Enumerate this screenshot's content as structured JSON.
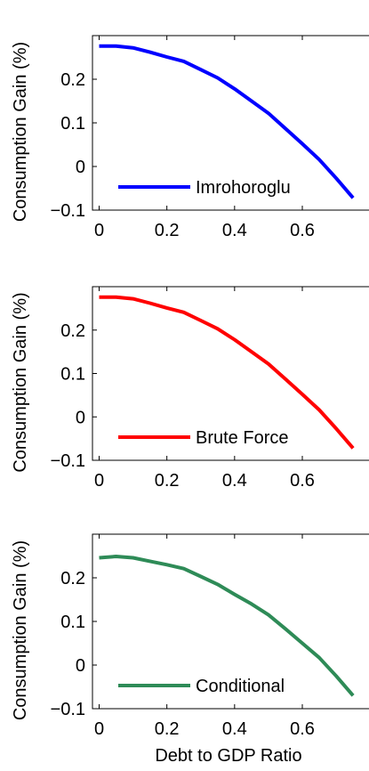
{
  "chart_data": [
    {
      "type": "line",
      "ylabel": "Consumption Gain (%)",
      "xlabel": "",
      "xlim": [
        0,
        0.75
      ],
      "ylim": [
        -0.1,
        0.3
      ],
      "xticks": [
        "0",
        "0.2",
        "0.4",
        "0.6"
      ],
      "yticks": [
        "−0.1",
        "0",
        "0.1",
        "0.2"
      ],
      "legend_position": "bottom",
      "series": [
        {
          "name": "Imrohoroglu",
          "color": "#0000ff",
          "x": [
            0,
            0.05,
            0.1,
            0.15,
            0.2,
            0.25,
            0.3,
            0.35,
            0.4,
            0.45,
            0.5,
            0.55,
            0.6,
            0.65,
            0.7,
            0.75
          ],
          "y": [
            0.276,
            0.276,
            0.272,
            0.262,
            0.251,
            0.241,
            0.222,
            0.203,
            0.178,
            0.15,
            0.122,
            0.087,
            0.052,
            0.016,
            -0.027,
            -0.072
          ]
        }
      ]
    },
    {
      "type": "line",
      "ylabel": "Consumption Gain (%)",
      "xlabel": "",
      "xlim": [
        0,
        0.75
      ],
      "ylim": [
        -0.1,
        0.3
      ],
      "xticks": [
        "0",
        "0.2",
        "0.4",
        "0.6"
      ],
      "yticks": [
        "−0.1",
        "0",
        "0.1",
        "0.2"
      ],
      "legend_position": "bottom",
      "series": [
        {
          "name": "Brute Force",
          "color": "#ff0000",
          "x": [
            0,
            0.05,
            0.1,
            0.15,
            0.2,
            0.25,
            0.3,
            0.35,
            0.4,
            0.45,
            0.5,
            0.55,
            0.6,
            0.65,
            0.7,
            0.75
          ],
          "y": [
            0.276,
            0.276,
            0.272,
            0.262,
            0.251,
            0.241,
            0.222,
            0.203,
            0.178,
            0.15,
            0.122,
            0.087,
            0.052,
            0.016,
            -0.027,
            -0.072
          ]
        }
      ]
    },
    {
      "type": "line",
      "ylabel": "Consumption Gain (%)",
      "xlabel": "Debt to GDP Ratio",
      "xlim": [
        0,
        0.75
      ],
      "ylim": [
        -0.1,
        0.3
      ],
      "xticks": [
        "0",
        "0.2",
        "0.4",
        "0.6"
      ],
      "yticks": [
        "−0.1",
        "0",
        "0.1",
        "0.2"
      ],
      "legend_position": "bottom",
      "series": [
        {
          "name": "Conditional",
          "color": "#2e8b57",
          "x": [
            0,
            0.05,
            0.1,
            0.15,
            0.2,
            0.25,
            0.3,
            0.35,
            0.4,
            0.45,
            0.5,
            0.55,
            0.6,
            0.65,
            0.7,
            0.75
          ],
          "y": [
            0.246,
            0.249,
            0.246,
            0.238,
            0.23,
            0.221,
            0.203,
            0.185,
            0.162,
            0.14,
            0.115,
            0.083,
            0.05,
            0.017,
            -0.025,
            -0.07
          ]
        }
      ]
    }
  ]
}
